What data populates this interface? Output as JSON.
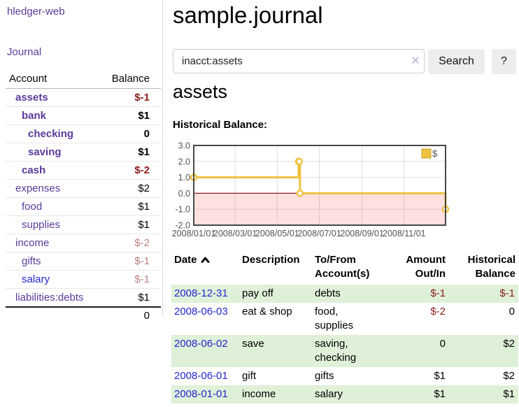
{
  "app": {
    "title": "hledger-web"
  },
  "sidebar": {
    "journal_label": "Journal",
    "accounts_table": {
      "account_header": "Account",
      "balance_header": "Balance",
      "rows": [
        {
          "name": "assets",
          "balance": "$-1",
          "indent": 1,
          "bold": true,
          "balance_style": "negbold",
          "name_style": ""
        },
        {
          "name": "bank",
          "balance": "$1",
          "indent": 2,
          "bold": true,
          "balance_style": "",
          "name_style": ""
        },
        {
          "name": "checking",
          "balance": "0",
          "indent": 3,
          "bold": true,
          "balance_style": "",
          "name_style": ""
        },
        {
          "name": "saving",
          "balance": "$1",
          "indent": 3,
          "bold": true,
          "balance_style": "",
          "name_style": ""
        },
        {
          "name": "cash",
          "balance": "$-2",
          "indent": 2,
          "bold": true,
          "balance_style": "negbold",
          "name_style": ""
        },
        {
          "name": "expenses",
          "balance": "$2",
          "indent": 1,
          "bold": false,
          "balance_style": "",
          "name_style": ""
        },
        {
          "name": "food",
          "balance": "$1",
          "indent": 2,
          "bold": false,
          "balance_style": "",
          "name_style": ""
        },
        {
          "name": "supplies",
          "balance": "$1",
          "indent": 2,
          "bold": false,
          "balance_style": "",
          "name_style": ""
        },
        {
          "name": "income",
          "balance": "$-2",
          "indent": 1,
          "bold": false,
          "balance_style": "negsoft",
          "name_style": ""
        },
        {
          "name": "gifts",
          "balance": "$-1",
          "indent": 2,
          "bold": false,
          "balance_style": "negsoft",
          "name_style": ""
        },
        {
          "name": "salary",
          "balance": "$-1",
          "indent": 2,
          "bold": false,
          "balance_style": "negsoft",
          "name_style": "blue"
        },
        {
          "name": "liabilities:debts",
          "balance": "$1",
          "indent": 1,
          "bold": false,
          "balance_style": "",
          "name_style": ""
        }
      ],
      "total": "0"
    }
  },
  "main": {
    "title": "sample.journal",
    "search": {
      "value": "inacct:assets",
      "clear_icon": "✕",
      "search_button": "Search",
      "help_button": "?"
    },
    "account_heading": "assets",
    "section_label": "Historical Balance:"
  },
  "chart_data": {
    "type": "line",
    "title": "Historical Balance",
    "step": true,
    "xlim": [
      "2008-01-01",
      "2008-12-31"
    ],
    "ylim": [
      -2,
      3
    ],
    "grid": true,
    "series": [
      {
        "name": "$",
        "color": "#edc240",
        "points": [
          {
            "date": "2008-01-01",
            "value": 1
          },
          {
            "date": "2008-06-01",
            "value": 2
          },
          {
            "date": "2008-06-02",
            "value": 2
          },
          {
            "date": "2008-06-03",
            "value": 0
          },
          {
            "date": "2008-12-31",
            "value": -1
          }
        ]
      }
    ],
    "x_ticks": [
      {
        "date": "2008-01-01",
        "label": "2008/01/01"
      },
      {
        "date": "2008-03-01",
        "label": "2008/03/01"
      },
      {
        "date": "2008-05-01",
        "label": "2008/05/01"
      },
      {
        "date": "2008-07-01",
        "label": "2008/07/01"
      },
      {
        "date": "2008-09-01",
        "label": "2008/09/01"
      },
      {
        "date": "2008-11-01",
        "label": "2008/11/01"
      }
    ],
    "y_ticks": [
      {
        "value": 3,
        "label": "3.0"
      },
      {
        "value": 2,
        "label": "2.0"
      },
      {
        "value": 1,
        "label": "1.0"
      },
      {
        "value": 0,
        "label": "0.0"
      },
      {
        "value": -1,
        "label": "-1.0"
      },
      {
        "value": -2,
        "label": "-2.0"
      }
    ],
    "legend": {
      "label": "$",
      "position": "top-right"
    },
    "colors": {
      "grid": "#dedede",
      "border": "#474747",
      "axis_text": "#545454",
      "negative_region": "rgba(255,0,0,0.12)",
      "zero_line": "#8b1a1a",
      "legend_box_border": "#c9a22e"
    }
  },
  "register": {
    "headers": {
      "date": "Date",
      "description": "Description",
      "accounts": "To/From Account(s)",
      "amount": "Amount Out/In",
      "balance": "Historical Balance"
    },
    "rows": [
      {
        "date": "2008-12-31",
        "description": "pay off",
        "accounts": "debts",
        "amount": "$-1",
        "amount_negative": true,
        "balance": "$-1",
        "balance_negative": true
      },
      {
        "date": "2008-06-03",
        "description": "eat & shop",
        "accounts": "food, supplies",
        "amount": "$-2",
        "amount_negative": true,
        "balance": "0",
        "balance_negative": false
      },
      {
        "date": "2008-06-02",
        "description": "save",
        "accounts": "saving, checking",
        "amount": "0",
        "amount_negative": false,
        "balance": "$2",
        "balance_negative": false
      },
      {
        "date": "2008-06-01",
        "description": "gift",
        "accounts": "gifts",
        "amount": "$1",
        "amount_negative": false,
        "balance": "$2",
        "balance_negative": false
      },
      {
        "date": "2008-01-01",
        "description": "income",
        "accounts": "salary",
        "amount": "$1",
        "amount_negative": false,
        "balance": "$1",
        "balance_negative": false
      }
    ]
  },
  "colors": {
    "link_purple": "#5b3a9b",
    "link_blue": "#2525cf",
    "negative_dark": "#8b1a1a",
    "negative_soft": "#bd7e7e",
    "row_stripe_green": "#dff0d8",
    "accent_gold": "#edc240",
    "button_bg": "#ededed"
  }
}
